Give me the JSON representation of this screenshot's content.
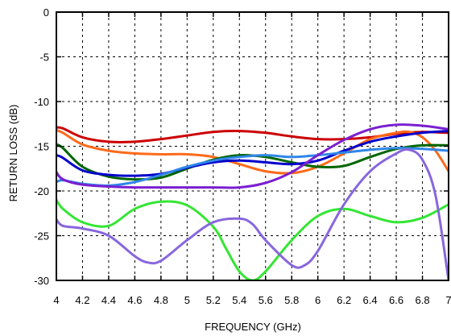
{
  "chart_data": {
    "type": "line",
    "title": "",
    "xlabel": "FREQUENCY (GHz)",
    "ylabel": "RETURN LOSS  (dB)",
    "xlim": [
      4,
      7
    ],
    "ylim": [
      -30,
      0
    ],
    "x_ticks": [
      4,
      4.2,
      4.4,
      4.6,
      4.8,
      5,
      5.2,
      5.4,
      5.6,
      5.8,
      6,
      6.2,
      6.4,
      6.6,
      6.8,
      7
    ],
    "x_tick_labels": [
      "4",
      "4.2",
      "4.4",
      "4.6",
      "4.8",
      "5",
      "5.2",
      "5.4",
      "5.6",
      "5.8",
      "6",
      "6.2",
      "6.4",
      "6.6",
      "6.8",
      "7"
    ],
    "y_ticks": [
      0,
      -5,
      -10,
      -15,
      -20,
      -25,
      -30
    ],
    "y_tick_labels": [
      "0",
      "-5",
      "-10",
      "-15",
      "-20",
      "-25",
      "-30"
    ],
    "grid": true,
    "legend": "none",
    "series": [
      {
        "color": "#cc0000",
        "x": [
          4,
          4.05,
          4.2,
          4.4,
          4.6,
          4.8,
          5.0,
          5.2,
          5.4,
          5.6,
          5.8,
          6.0,
          6.2,
          6.4,
          6.6,
          6.8,
          7.0
        ],
        "y": [
          -12.9,
          -13.0,
          -14.0,
          -14.5,
          -14.5,
          -14.2,
          -13.8,
          -13.4,
          -13.3,
          -13.5,
          -13.9,
          -14.2,
          -14.2,
          -14.0,
          -13.6,
          -13.4,
          -13.5
        ]
      },
      {
        "color": "#ff6a1a",
        "x": [
          4,
          4.05,
          4.2,
          4.4,
          4.6,
          4.8,
          5.0,
          5.2,
          5.4,
          5.6,
          5.8,
          6.0,
          6.2,
          6.4,
          6.6,
          6.7,
          6.8,
          6.9,
          7.0
        ],
        "y": [
          -13.2,
          -13.5,
          -14.8,
          -15.5,
          -15.8,
          -15.9,
          -15.9,
          -16.2,
          -17.0,
          -17.8,
          -18.0,
          -17.3,
          -15.8,
          -14.2,
          -13.5,
          -13.4,
          -14.0,
          -15.5,
          -17.8
        ]
      },
      {
        "color": "#006600",
        "x": [
          4,
          4.05,
          4.2,
          4.4,
          4.6,
          4.8,
          5.0,
          5.2,
          5.4,
          5.6,
          5.8,
          6.0,
          6.2,
          6.4,
          6.6,
          6.8,
          7.0
        ],
        "y": [
          -14.8,
          -15.2,
          -17.3,
          -18.4,
          -18.7,
          -18.5,
          -17.5,
          -16.5,
          -16.0,
          -16.2,
          -16.8,
          -17.3,
          -17.2,
          -16.2,
          -15.3,
          -14.9,
          -14.9
        ]
      },
      {
        "color": "#0000cc",
        "x": [
          4,
          4.05,
          4.2,
          4.4,
          4.6,
          4.8,
          5.0,
          5.2,
          5.4,
          5.6,
          5.8,
          6.0,
          6.2,
          6.4,
          6.6,
          6.8,
          7.0
        ],
        "y": [
          -16.0,
          -16.3,
          -17.7,
          -18.2,
          -18.3,
          -18.1,
          -17.4,
          -16.8,
          -16.6,
          -16.8,
          -17.0,
          -16.6,
          -15.5,
          -14.5,
          -13.9,
          -13.5,
          -13.3
        ]
      },
      {
        "color": "#2f86e8",
        "x": [
          4,
          4.05,
          4.2,
          4.4,
          4.6,
          4.8,
          5.0,
          5.2,
          5.4,
          5.6,
          5.8,
          6.0,
          6.2,
          6.4,
          6.6,
          6.8,
          7.0
        ],
        "y": [
          -19.0,
          -18.8,
          -19.2,
          -19.4,
          -19.0,
          -18.2,
          -17.3,
          -16.6,
          -16.2,
          -16.0,
          -16.2,
          -16.0,
          -15.7,
          -15.4,
          -15.2,
          -15.3,
          -15.5
        ]
      },
      {
        "color": "#7b1fd0",
        "x": [
          4,
          4.05,
          4.2,
          4.4,
          4.6,
          4.8,
          5.0,
          5.2,
          5.4,
          5.6,
          5.8,
          6.0,
          6.2,
          6.4,
          6.6,
          6.8,
          7.0
        ],
        "y": [
          -17.9,
          -18.7,
          -19.3,
          -19.5,
          -19.6,
          -19.6,
          -19.6,
          -19.6,
          -19.6,
          -19.1,
          -17.9,
          -16.0,
          -14.3,
          -13.1,
          -12.6,
          -12.7,
          -13.1
        ]
      },
      {
        "color": "#33e633",
        "x": [
          4,
          4.05,
          4.2,
          4.4,
          4.6,
          4.8,
          5.0,
          5.2,
          5.3,
          5.4,
          5.5,
          5.6,
          5.8,
          6.0,
          6.2,
          6.4,
          6.6,
          6.8,
          7.0
        ],
        "y": [
          -21.0,
          -22.0,
          -23.5,
          -23.9,
          -22.0,
          -21.2,
          -21.6,
          -24.0,
          -26.5,
          -29.0,
          -30.0,
          -29.0,
          -25.5,
          -22.8,
          -22.0,
          -22.8,
          -23.5,
          -23.0,
          -21.5
        ]
      },
      {
        "color": "#8866dd",
        "x": [
          4,
          4.05,
          4.2,
          4.4,
          4.6,
          4.7,
          4.8,
          5.0,
          5.2,
          5.4,
          5.5,
          5.6,
          5.8,
          5.9,
          6.0,
          6.2,
          6.4,
          6.6,
          6.7,
          6.8,
          6.9,
          7.0
        ],
        "y": [
          -23.2,
          -23.9,
          -24.2,
          -25.0,
          -27.3,
          -28.0,
          -27.8,
          -25.5,
          -23.5,
          -23.1,
          -23.7,
          -25.5,
          -28.3,
          -28.3,
          -26.7,
          -21.5,
          -17.8,
          -15.8,
          -15.4,
          -16.5,
          -20.5,
          -30.0
        ]
      }
    ]
  }
}
